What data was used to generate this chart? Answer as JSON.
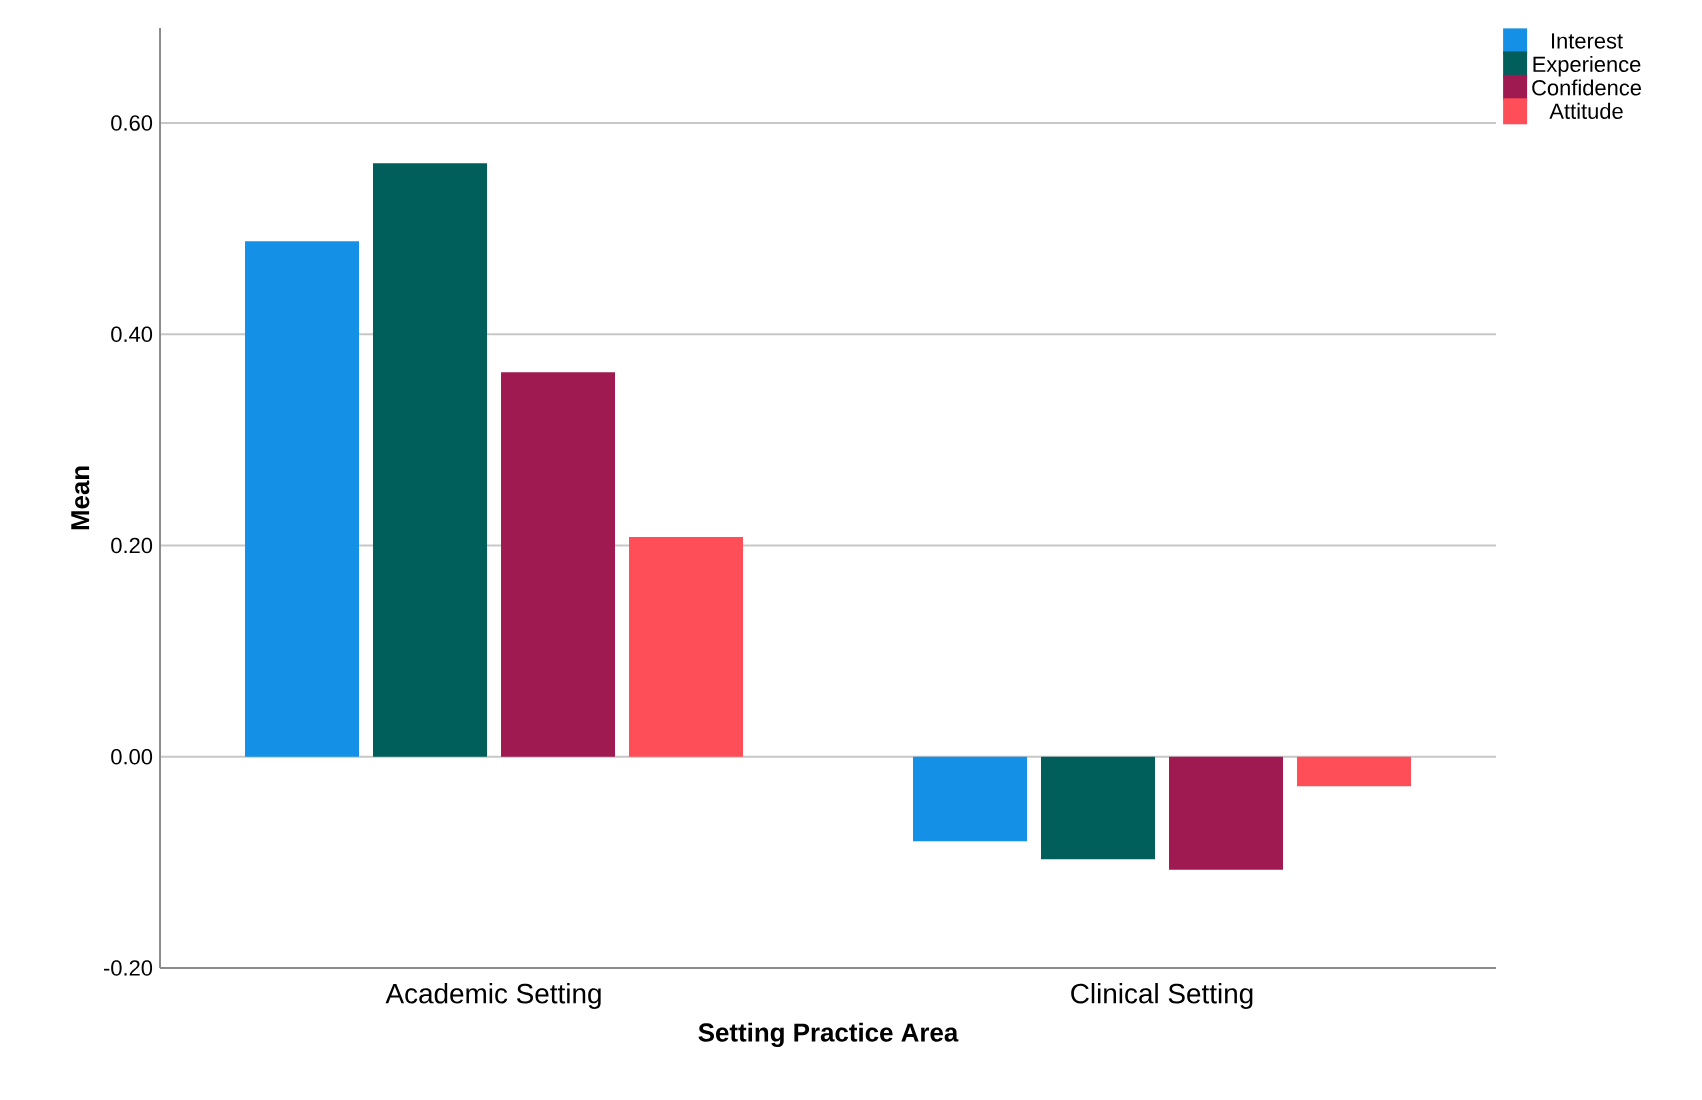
{
  "chart_data": {
    "type": "bar",
    "xlabel": "Setting Practice Area",
    "ylabel": "Mean",
    "categories": [
      "Academic Setting",
      "Clinical Setting"
    ],
    "series": [
      {
        "name": "Interest",
        "color": "#1490e6",
        "values": [
          0.488,
          -0.08
        ]
      },
      {
        "name": "Experience",
        "color": "#005e5b",
        "values": [
          0.562,
          -0.097
        ]
      },
      {
        "name": "Confidence",
        "color": "#9e1a50",
        "values": [
          0.364,
          -0.107
        ]
      },
      {
        "name": "Attitude",
        "color": "#fe4f58",
        "values": [
          0.208,
          -0.028
        ]
      }
    ],
    "ylim": [
      -0.2,
      0.69
    ],
    "yticks": [
      {
        "value": -0.2,
        "label": "-0.20"
      },
      {
        "value": 0,
        "label": "0.00"
      },
      {
        "value": 0.2,
        "label": "0.20"
      },
      {
        "value": 0.4,
        "label": "0.40"
      },
      {
        "value": 0.6,
        "label": "0.60"
      }
    ],
    "grid": "y",
    "legend": "top right"
  }
}
